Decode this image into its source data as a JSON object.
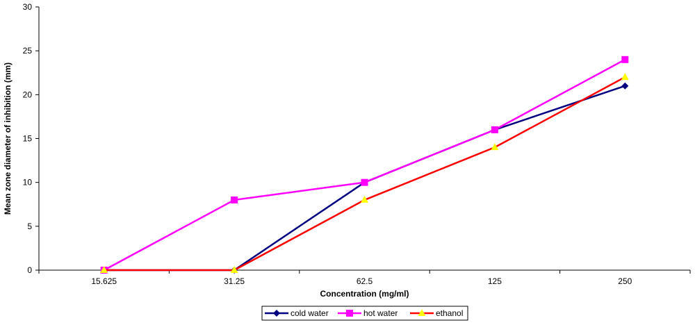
{
  "chart_data": {
    "type": "line",
    "title": "",
    "xlabel": "Concentration (mg/ml)",
    "ylabel": "Mean zone diameter of inhibition (mm)",
    "categories": [
      "15.625",
      "31.25",
      "62.5",
      "125",
      "250"
    ],
    "ylim": [
      0,
      30
    ],
    "yticks": [
      0,
      5,
      10,
      15,
      20,
      25,
      30
    ],
    "grid": false,
    "legend_position": "bottom",
    "series": [
      {
        "name": "cold water",
        "values": [
          0,
          0,
          10,
          16,
          21
        ],
        "color": "#000080",
        "marker": "diamond"
      },
      {
        "name": "hot water",
        "values": [
          0,
          8,
          10,
          16,
          24
        ],
        "color": "#ff00ff",
        "marker": "square"
      },
      {
        "name": "ethanol",
        "values": [
          0,
          0,
          8,
          14,
          22
        ],
        "color": "#ff0000",
        "marker": "triangle",
        "marker_color": "#ffff00"
      }
    ]
  }
}
